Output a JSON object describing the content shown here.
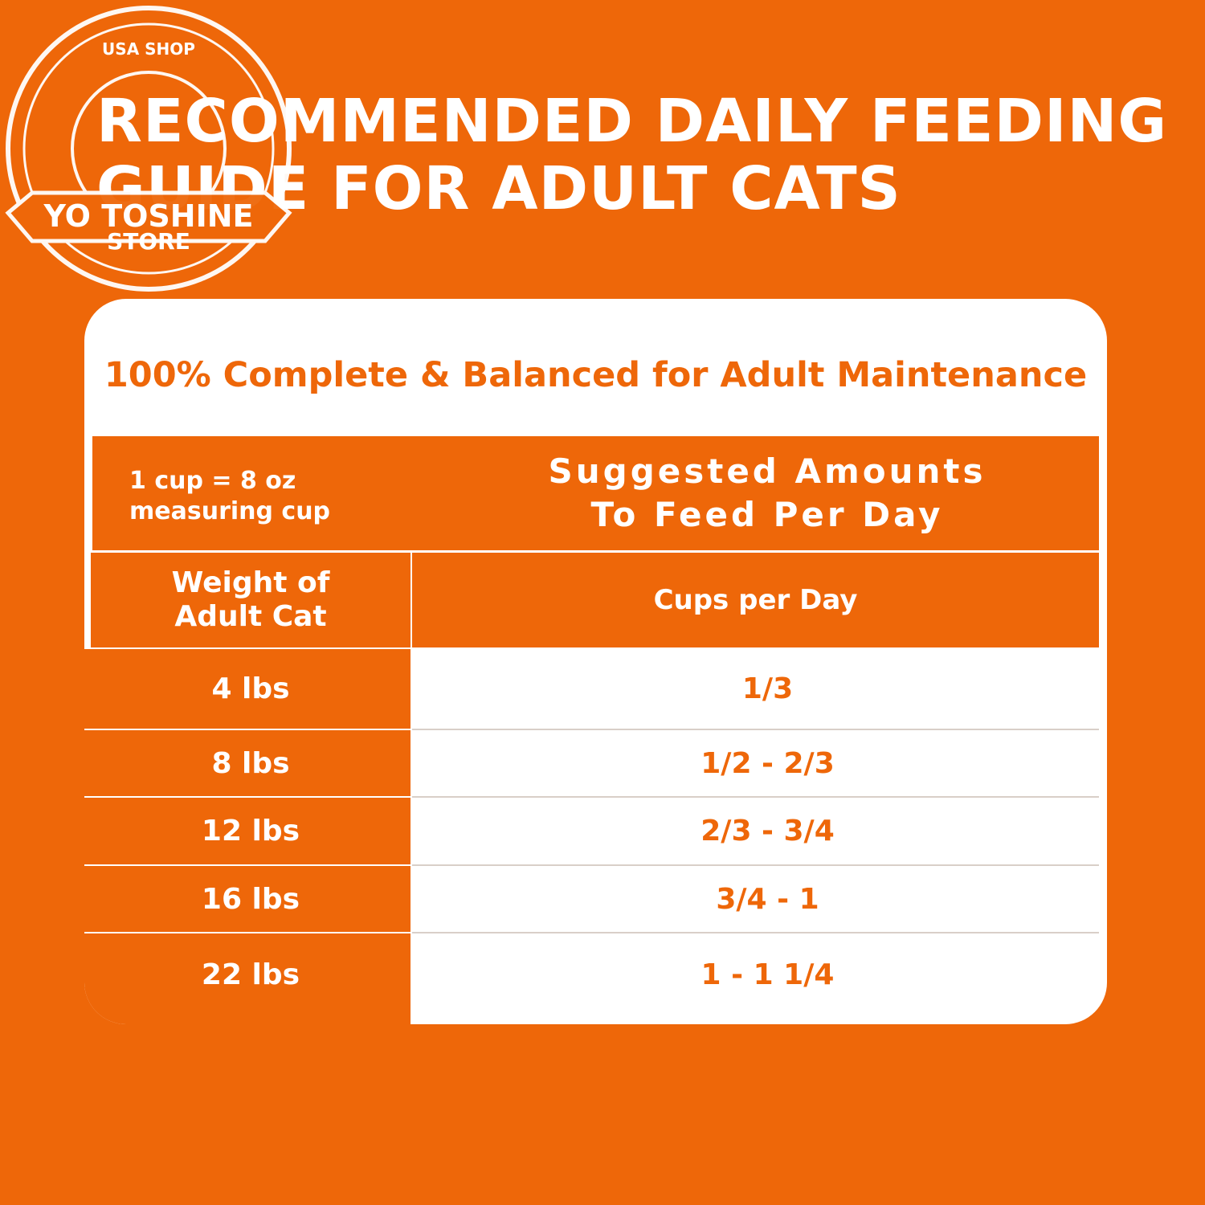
{
  "header": {
    "title_lines": [
      "RECOMMENDED DAILY FEEDING",
      "GUIDE FOR ADULT CATS"
    ]
  },
  "watermark": {
    "top": "USA SHOP",
    "band": "YO TOSHINE",
    "bottom": "STORE"
  },
  "card": {
    "subtitle": "100% Complete & Balanced for Adult Maintenance"
  },
  "table": {
    "note_lines": [
      "1 cup = 8 oz",
      "measuring cup"
    ],
    "header_lines": [
      "Suggested Amounts",
      "To Feed Per Day"
    ],
    "column_headers": [
      [
        "Weight of",
        "Adult Cat"
      ],
      "Cups per Day"
    ],
    "rows": [
      [
        "4 lbs",
        "1/3"
      ],
      [
        "8 lbs",
        "1/2 - 2/3"
      ],
      [
        "12 lbs",
        "2/3 - 3/4"
      ],
      [
        "16 lbs",
        "3/4 - 1"
      ],
      [
        "22 lbs",
        "1 - 1 1/4"
      ]
    ]
  }
}
